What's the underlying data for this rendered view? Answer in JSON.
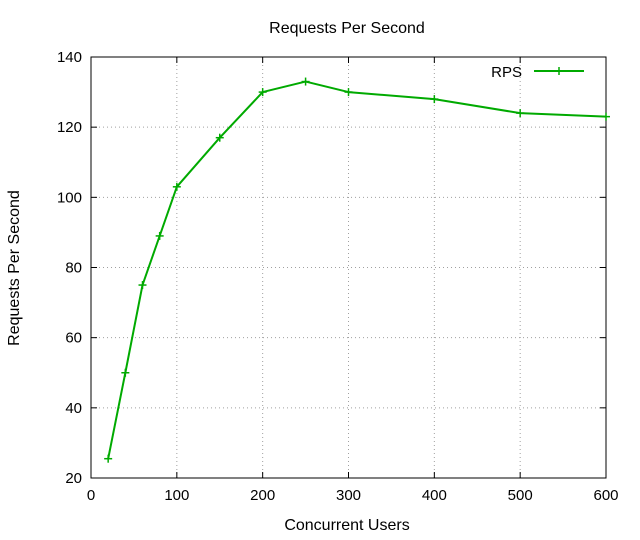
{
  "chart_data": {
    "type": "line",
    "title": "Requests Per Second",
    "xlabel": "Concurrent Users",
    "ylabel": "Requests Per Second",
    "xlim": [
      0,
      600
    ],
    "ylim": [
      20,
      140
    ],
    "x_ticks": [
      0,
      100,
      200,
      300,
      400,
      500,
      600
    ],
    "y_ticks": [
      20,
      40,
      60,
      80,
      100,
      120,
      140
    ],
    "grid": true,
    "legend_position": "top-right",
    "series": [
      {
        "name": "RPS",
        "color": "#00aa00",
        "marker": "plus",
        "x": [
          20,
          40,
          60,
          80,
          100,
          150,
          200,
          250,
          300,
          400,
          500,
          600
        ],
        "y": [
          25.5,
          50,
          75,
          89,
          103,
          117,
          130,
          133,
          130,
          128,
          124,
          123
        ]
      }
    ]
  }
}
